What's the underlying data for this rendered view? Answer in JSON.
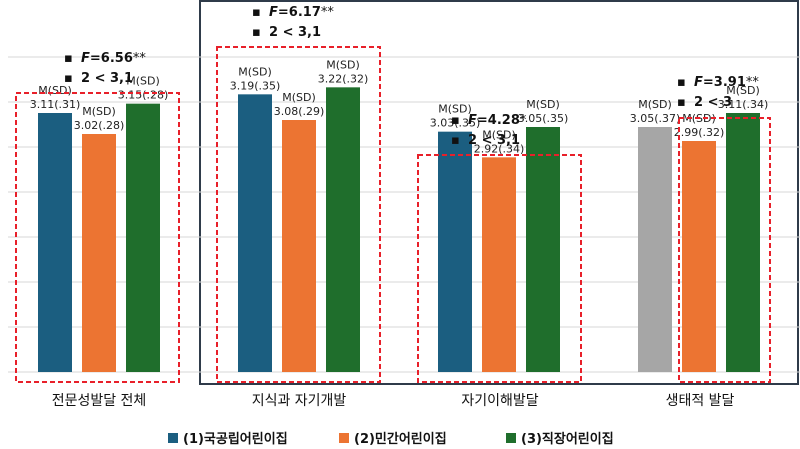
{
  "chart_data": {
    "type": "bar",
    "title": "",
    "xlabel": "",
    "ylabel": "",
    "ylim": [
      2.0,
      3.35
    ],
    "categories": [
      "전문성발달 전체",
      "지식과 자기개발",
      "자기이해발달",
      "생태적 발달"
    ],
    "series": [
      {
        "name": "(1)국공립어린이집",
        "values": [
          3.11,
          3.19,
          3.03,
          3.05
        ],
        "sd": [
          "(.31)",
          "(.35)",
          "(.35)",
          "(.37)"
        ]
      },
      {
        "name": "(2)민간어린이집",
        "values": [
          3.02,
          3.08,
          2.92,
          2.99
        ],
        "sd": [
          "(.28)",
          "(.29)",
          "(.34)",
          "(.32)"
        ]
      },
      {
        "name": "(3)직장어린이집",
        "values": [
          3.15,
          3.22,
          3.05,
          3.11
        ],
        "sd": [
          "(.28)",
          "(.32)",
          "(.35)",
          "(.34)"
        ]
      }
    ],
    "colors": [
      "#1b5e80",
      "#ec7432",
      "#1f6e2c"
    ],
    "grey_color": "#a6a6a6",
    "grey_bar": {
      "category": 3,
      "series": 0
    },
    "label_prefix": "M(SD)",
    "stats": [
      {
        "f_letter": "F",
        "f_value": "=6.56",
        "f_sig": "**",
        "post_hoc": "2 < 3,1"
      },
      {
        "f_letter": "F",
        "f_value": "=6.17",
        "f_sig": "**",
        "post_hoc": "2 < 3,1"
      },
      {
        "f_letter": "F",
        "f_value": "=4.28",
        "f_sig": "*",
        "post_hoc": "2 < 3,1"
      },
      {
        "f_letter": "F",
        "f_value": "=3.91",
        "f_sig": "**",
        "post_hoc": "2 < 3"
      }
    ],
    "bullet": "▪",
    "legend_position": "bottom",
    "grid": true
  }
}
